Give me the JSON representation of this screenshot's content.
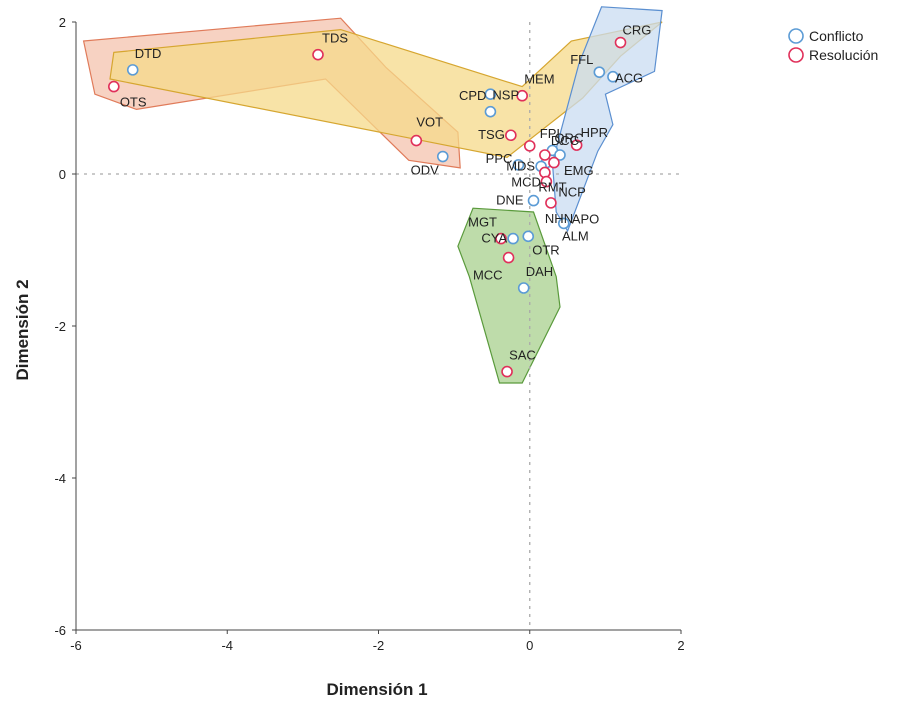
{
  "chart_data": {
    "type": "scatter",
    "xlabel": "Dimensión 1",
    "ylabel": "Dimensión 2",
    "xlim": [
      -6,
      2
    ],
    "ylim": [
      -6,
      2
    ],
    "xticks": [
      -6,
      -4,
      -2,
      0,
      2
    ],
    "yticks": [
      2,
      0,
      -2,
      -4,
      -6
    ],
    "reference_lines": {
      "x": 0,
      "y": 0,
      "style": "dotted"
    },
    "legend": {
      "position": "top-right",
      "entries": [
        {
          "label": "Conflicto",
          "color": "#5b9bd5"
        },
        {
          "label": "Resolución",
          "color": "#e0305a"
        }
      ]
    },
    "series": [
      {
        "name": "Conflicto",
        "color": "#5b9bd5",
        "points": [
          {
            "label": "DTD",
            "x": -5.25,
            "y": 1.37
          },
          {
            "label": "ODV",
            "x": -1.15,
            "y": 0.23
          },
          {
            "label": "CPD",
            "x": -0.52,
            "y": 1.05
          },
          {
            "label": "NSP",
            "x": -0.52,
            "y": 0.82
          },
          {
            "label": "FFL",
            "x": 0.92,
            "y": 1.34
          },
          {
            "label": "ACG",
            "x": 1.1,
            "y": 1.28
          },
          {
            "label": "QRC",
            "x": 0.3,
            "y": 0.31
          },
          {
            "label": "PPC",
            "x": -0.15,
            "y": 0.12
          },
          {
            "label": "EMG",
            "x": 0.4,
            "y": 0.25
          },
          {
            "label": "NCP",
            "x": 0.22,
            "y": 0.15
          },
          {
            "label": "MDS",
            "x": 0.15,
            "y": 0.1
          },
          {
            "label": "DNE",
            "x": 0.05,
            "y": -0.35
          },
          {
            "label": "APO",
            "x": 0.45,
            "y": -0.65
          },
          {
            "label": "CYA",
            "x": -0.22,
            "y": -0.85
          },
          {
            "label": "OTR",
            "x": -0.02,
            "y": -0.82
          },
          {
            "label": "DAH",
            "x": -0.08,
            "y": -1.5
          }
        ]
      },
      {
        "name": "Resolución",
        "color": "#e0305a",
        "points": [
          {
            "label": "OTS",
            "x": -5.5,
            "y": 1.15
          },
          {
            "label": "TDS",
            "x": -2.8,
            "y": 1.57
          },
          {
            "label": "VOT",
            "x": -1.5,
            "y": 0.44
          },
          {
            "label": "CRG",
            "x": 1.2,
            "y": 1.73
          },
          {
            "label": "MEM",
            "x": -0.1,
            "y": 1.03
          },
          {
            "label": "FPI",
            "x": 0.0,
            "y": 0.37
          },
          {
            "label": "TSG",
            "x": -0.25,
            "y": 0.51
          },
          {
            "label": "DCC",
            "x": 0.2,
            "y": 0.25
          },
          {
            "label": "HPR",
            "x": 0.62,
            "y": 0.38
          },
          {
            "label": "MCD",
            "x": 0.2,
            "y": 0.02
          },
          {
            "label": "RMT",
            "x": 0.22,
            "y": -0.1
          },
          {
            "label": "NHN",
            "x": 0.28,
            "y": -0.38
          },
          {
            "label": "MGT",
            "x": -0.38,
            "y": -0.85
          },
          {
            "label": "MCC",
            "x": -0.28,
            "y": -1.1
          },
          {
            "label": "SAC",
            "x": -0.3,
            "y": -2.6
          },
          {
            "label": "ALM",
            "x": 0.32,
            "y": 0.15
          }
        ]
      }
    ],
    "hulls": [
      {
        "color": "#e07b5a",
        "fill": "#f4c3ad",
        "points": [
          [
            -5.9,
            1.75
          ],
          [
            -2.5,
            2.05
          ],
          [
            -1.9,
            1.4
          ],
          [
            -0.95,
            0.55
          ],
          [
            -0.92,
            0.08
          ],
          [
            -1.6,
            0.18
          ],
          [
            -2.7,
            1.25
          ],
          [
            -5.2,
            0.85
          ],
          [
            -5.75,
            1.05
          ]
        ]
      },
      {
        "color": "#d6a630",
        "fill": "#f6d98a",
        "points": [
          [
            -5.5,
            1.6
          ],
          [
            -2.5,
            1.9
          ],
          [
            -0.1,
            1.15
          ],
          [
            0.55,
            1.75
          ],
          [
            1.75,
            2.0
          ],
          [
            1.2,
            1.55
          ],
          [
            0.7,
            1.0
          ],
          [
            -0.3,
            0.22
          ],
          [
            -5.55,
            1.25
          ]
        ]
      },
      {
        "color": "#5b8fd0",
        "fill": "#c9dcf1",
        "points": [
          [
            0.95,
            2.2
          ],
          [
            1.75,
            2.15
          ],
          [
            1.65,
            1.35
          ],
          [
            1.0,
            1.05
          ],
          [
            1.1,
            0.65
          ],
          [
            0.9,
            0.3
          ],
          [
            0.5,
            -0.75
          ],
          [
            0.35,
            -0.5
          ],
          [
            0.3,
            0.15
          ],
          [
            0.65,
            1.45
          ]
        ]
      },
      {
        "color": "#5a9a3c",
        "fill": "#a8d08d",
        "points": [
          [
            -0.75,
            -0.45
          ],
          [
            0.05,
            -0.5
          ],
          [
            0.35,
            -1.35
          ],
          [
            0.4,
            -1.75
          ],
          [
            -0.1,
            -2.75
          ],
          [
            -0.4,
            -2.75
          ],
          [
            -0.8,
            -1.35
          ],
          [
            -0.95,
            -0.95
          ]
        ]
      }
    ]
  }
}
